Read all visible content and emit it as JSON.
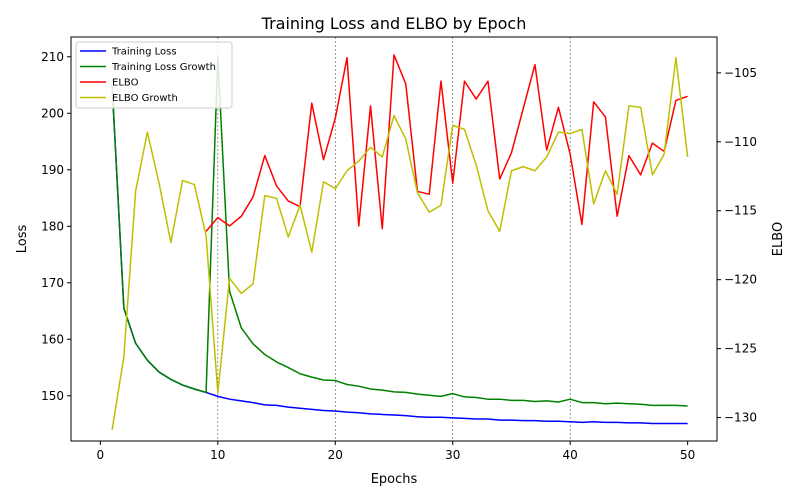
{
  "chart_data": {
    "type": "line",
    "title": "Training Loss and ELBO by Epoch",
    "xlabel": "Epochs",
    "ylabel_left": "Loss",
    "ylabel_right": "ELBO",
    "xlim": [
      -2.5,
      52.5
    ],
    "ylim_left": [
      142,
      213.5
    ],
    "ylim_right": [
      -131.7,
      -102.4
    ],
    "x_ticks": [
      0,
      10,
      20,
      30,
      40,
      50
    ],
    "y_ticks_left": [
      150,
      160,
      170,
      180,
      190,
      200,
      210
    ],
    "y_ticks_right": [
      -130,
      -125,
      -120,
      -115,
      -110,
      -105
    ],
    "vgrid_at": [
      10,
      20,
      30,
      40
    ],
    "legend_loc": "upper left",
    "x": [
      1,
      2,
      3,
      4,
      5,
      6,
      7,
      8,
      9,
      10,
      11,
      12,
      13,
      14,
      15,
      16,
      17,
      18,
      19,
      20,
      21,
      22,
      23,
      24,
      25,
      26,
      27,
      28,
      29,
      30,
      31,
      32,
      33,
      34,
      35,
      36,
      37,
      38,
      39,
      40,
      41,
      42,
      43,
      44,
      45,
      46,
      47,
      48,
      49,
      50
    ],
    "series": [
      {
        "name": "Training Loss",
        "axis": "left",
        "color": "#0000ff",
        "values": [
          205.0,
          165.5,
          159.3,
          156.3,
          154.2,
          152.9,
          151.9,
          151.2,
          150.6,
          149.9,
          149.4,
          149.1,
          148.8,
          148.4,
          148.3,
          148.0,
          147.8,
          147.6,
          147.4,
          147.3,
          147.1,
          147.0,
          146.8,
          146.7,
          146.6,
          146.5,
          146.3,
          146.2,
          146.2,
          146.1,
          146.0,
          145.9,
          145.9,
          145.7,
          145.7,
          145.6,
          145.6,
          145.5,
          145.5,
          145.4,
          145.3,
          145.4,
          145.3,
          145.3,
          145.2,
          145.2,
          145.1,
          145.1,
          145.1,
          145.1
        ]
      },
      {
        "name": "Training Loss Growth",
        "axis": "left",
        "color": "#008000",
        "values": [
          205.0,
          165.5,
          159.3,
          156.3,
          154.2,
          152.9,
          151.9,
          151.2,
          150.6,
          210.0,
          168.5,
          162.0,
          159.2,
          157.3,
          156.0,
          155.0,
          153.9,
          153.3,
          152.8,
          152.7,
          152.0,
          151.7,
          151.2,
          151.0,
          150.7,
          150.6,
          150.3,
          150.1,
          149.9,
          150.4,
          149.8,
          149.7,
          149.4,
          149.4,
          149.2,
          149.2,
          149.0,
          149.1,
          148.9,
          149.4,
          148.8,
          148.8,
          148.6,
          148.7,
          148.6,
          148.5,
          148.3,
          148.3,
          148.3,
          148.2
        ]
      },
      {
        "name": "ELBO",
        "axis": "right",
        "color": "#ff0000",
        "values": [
          null,
          null,
          null,
          null,
          null,
          null,
          null,
          null,
          -116.5,
          -115.5,
          -116.1,
          -115.4,
          -114.0,
          -111.0,
          -113.2,
          -114.3,
          -114.7,
          -107.2,
          -111.3,
          -108.3,
          -103.9,
          -116.1,
          -107.4,
          -116.3,
          -103.7,
          -105.8,
          -113.6,
          -113.8,
          -105.6,
          -113.0,
          -105.6,
          -106.9,
          -105.6,
          -112.7,
          -110.8,
          -107.6,
          -104.4,
          -110.6,
          -107.5,
          -110.9,
          -116.0,
          -107.1,
          -108.2,
          -115.4,
          -111.0,
          -112.4,
          -110.1,
          -110.7,
          -107.0,
          -106.7
        ]
      },
      {
        "name": "ELBO Growth",
        "axis": "right",
        "color": "#bfbf00",
        "values": [
          -130.9,
          -125.6,
          -113.6,
          -109.3,
          -113.0,
          -117.3,
          -112.8,
          -113.1,
          -116.8,
          -128.2,
          -119.9,
          -121.0,
          -120.3,
          -113.9,
          -114.1,
          -116.9,
          -114.6,
          -118.0,
          -112.9,
          -113.4,
          -112.1,
          -111.4,
          -110.4,
          -111.1,
          -108.1,
          -109.8,
          -113.7,
          -115.1,
          -114.6,
          -108.8,
          -109.1,
          -111.7,
          -115.0,
          -116.5,
          -112.1,
          -111.8,
          -112.1,
          -111.1,
          -109.3,
          -109.4,
          -109.1,
          -114.5,
          -112.1,
          -113.8,
          -107.4,
          -107.5,
          -112.4,
          -110.9,
          -103.9,
          -111.1
        ]
      }
    ]
  }
}
